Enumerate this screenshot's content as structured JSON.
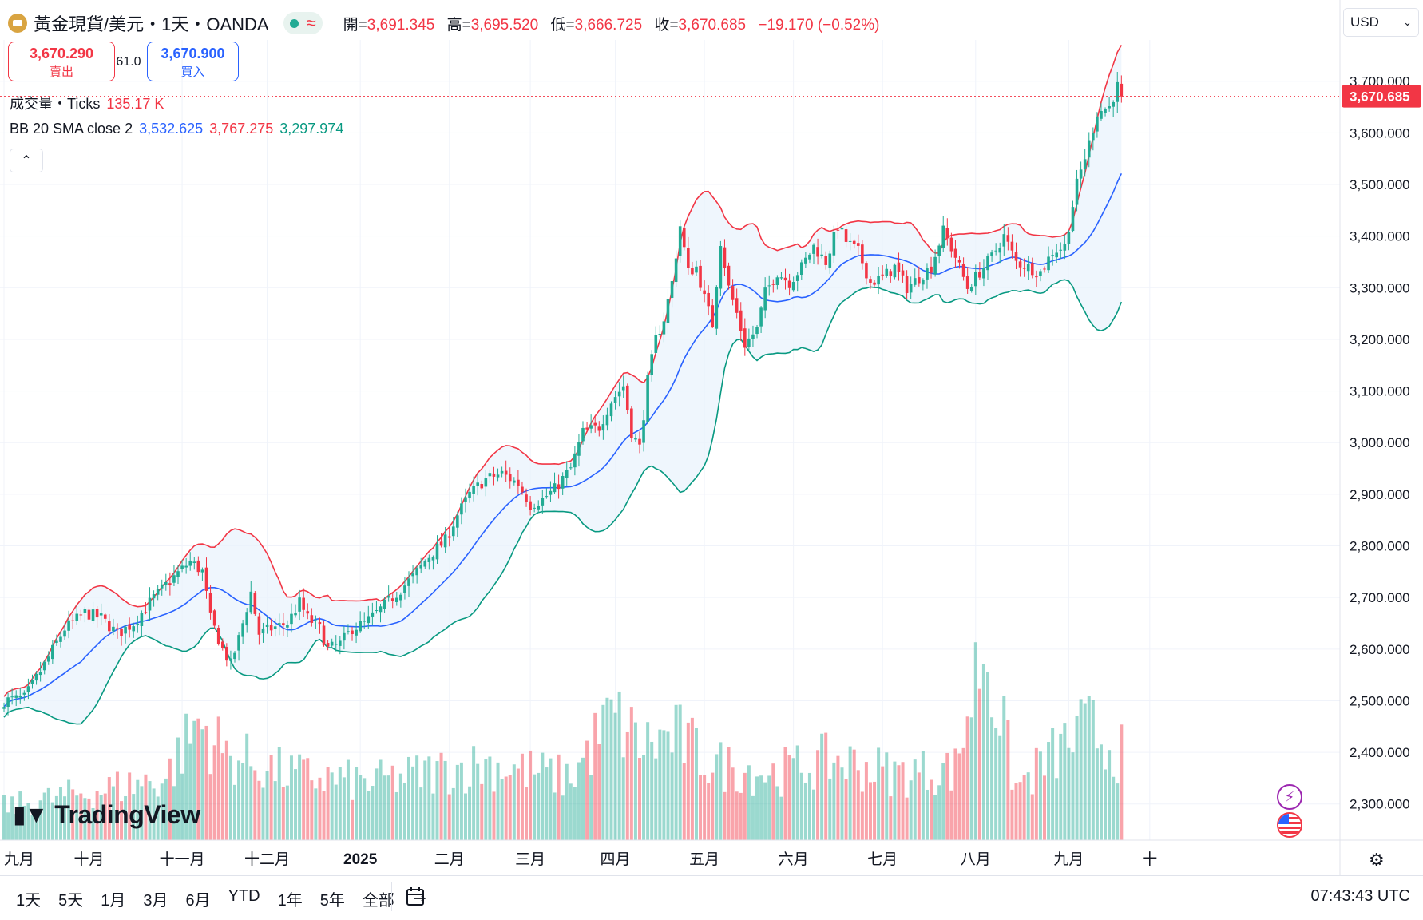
{
  "header": {
    "symbol": "黃金現貨/美元・1天・OANDA",
    "ohlc": [
      {
        "k": "開=",
        "v": "3,691.345"
      },
      {
        "k": "高=",
        "v": "3,695.520"
      },
      {
        "k": "低=",
        "v": "3,666.725"
      },
      {
        "k": "收=",
        "v": "3,670.685"
      }
    ],
    "change": "−19.170 (−0.52%)",
    "market_icon": "market-status-icon",
    "wave_icon": "≈"
  },
  "trade": {
    "sell_price": "3,670.290",
    "sell_label": "賣出",
    "spread": "61.0",
    "buy_price": "3,670.900",
    "buy_label": "買入"
  },
  "indicators": {
    "volume_label": "成交量・Ticks",
    "volume_value": "135.17 K",
    "bb_label": "BB 20 SMA close 2",
    "bb_basis": "3,532.625",
    "bb_upper": "3,767.275",
    "bb_lower": "3,297.974"
  },
  "currency": "USD",
  "brand": "TradingView",
  "last_price": "3,670.685",
  "ranges": [
    "1天",
    "5天",
    "1月",
    "3月",
    "6月",
    "YTD",
    "1年",
    "5年",
    "全部"
  ],
  "clock": "07:43:43 UTC",
  "colors": {
    "up": "#22ab94",
    "down": "#f23645",
    "basis": "#2962ff",
    "upper": "#f23645",
    "lower": "#089981",
    "fill": "#eaf3fc"
  },
  "chart_data": {
    "type": "candlestick",
    "title": "黃金現貨/美元・1天・OANDA",
    "ylim": [
      2230,
      3780
    ],
    "y_ticks": [
      2300,
      2400,
      2500,
      2600,
      2700,
      2800,
      2900,
      3000,
      3100,
      3200,
      3300,
      3400,
      3500,
      3600,
      3700
    ],
    "y_tick_labels": [
      "2,300.000",
      "2,400.000",
      "2,500.000",
      "2,600.000",
      "2,700.000",
      "2,800.000",
      "2,900.000",
      "3,000.000",
      "3,100.000",
      "3,200.000",
      "3,300.000",
      "3,400.000",
      "3,500.000",
      "3,600.000",
      "3,700.000"
    ],
    "x_labels": [
      "九月",
      "十月",
      "十一月",
      "十二月",
      "2025",
      "二月",
      "三月",
      "四月",
      "五月",
      "六月",
      "七月",
      "八月",
      "九月",
      "十"
    ],
    "x_label_bar": [
      0,
      21,
      44,
      65,
      88,
      110,
      130,
      151,
      173,
      195,
      217,
      240,
      263,
      283
    ],
    "close_anchors": [
      [
        0,
        2500
      ],
      [
        5,
        2505
      ],
      [
        10,
        2570
      ],
      [
        15,
        2640
      ],
      [
        20,
        2670
      ],
      [
        24,
        2660
      ],
      [
        28,
        2630
      ],
      [
        32,
        2650
      ],
      [
        37,
        2700
      ],
      [
        42,
        2740
      ],
      [
        46,
        2770
      ],
      [
        49,
        2750
      ],
      [
        51,
        2660
      ],
      [
        54,
        2600
      ],
      [
        56,
        2570
      ],
      [
        58,
        2620
      ],
      [
        61,
        2710
      ],
      [
        63,
        2630
      ],
      [
        66,
        2640
      ],
      [
        70,
        2650
      ],
      [
        73,
        2690
      ],
      [
        75,
        2660
      ],
      [
        78,
        2640
      ],
      [
        80,
        2600
      ],
      [
        83,
        2610
      ],
      [
        86,
        2640
      ],
      [
        89,
        2650
      ],
      [
        92,
        2670
      ],
      [
        96,
        2700
      ],
      [
        101,
        2740
      ],
      [
        105,
        2780
      ],
      [
        109,
        2810
      ],
      [
        112,
        2860
      ],
      [
        115,
        2900
      ],
      [
        119,
        2930
      ],
      [
        123,
        2940
      ],
      [
        127,
        2920
      ],
      [
        130,
        2880
      ],
      [
        133,
        2890
      ],
      [
        136,
        2910
      ],
      [
        140,
        2950
      ],
      [
        143,
        3020
      ],
      [
        147,
        3030
      ],
      [
        150,
        3080
      ],
      [
        153,
        3110
      ],
      [
        155,
        3020
      ],
      [
        157,
        2990
      ],
      [
        159,
        3120
      ],
      [
        161,
        3200
      ],
      [
        163,
        3240
      ],
      [
        165,
        3310
      ],
      [
        167,
        3420
      ],
      [
        169,
        3330
      ],
      [
        171,
        3340
      ],
      [
        173,
        3280
      ],
      [
        175,
        3230
      ],
      [
        177,
        3390
      ],
      [
        179,
        3300
      ],
      [
        181,
        3250
      ],
      [
        183,
        3190
      ],
      [
        186,
        3220
      ],
      [
        188,
        3290
      ],
      [
        191,
        3330
      ],
      [
        194,
        3310
      ],
      [
        197,
        3340
      ],
      [
        200,
        3380
      ],
      [
        203,
        3350
      ],
      [
        206,
        3420
      ],
      [
        208,
        3390
      ],
      [
        211,
        3370
      ],
      [
        214,
        3310
      ],
      [
        217,
        3320
      ],
      [
        220,
        3340
      ],
      [
        223,
        3300
      ],
      [
        226,
        3320
      ],
      [
        229,
        3340
      ],
      [
        232,
        3410
      ],
      [
        235,
        3360
      ],
      [
        238,
        3300
      ],
      [
        241,
        3330
      ],
      [
        244,
        3360
      ],
      [
        247,
        3400
      ],
      [
        250,
        3350
      ],
      [
        253,
        3340
      ],
      [
        256,
        3330
      ],
      [
        259,
        3370
      ],
      [
        262,
        3380
      ],
      [
        265,
        3500
      ],
      [
        268,
        3580
      ],
      [
        270,
        3640
      ],
      [
        273,
        3650
      ],
      [
        275,
        3690
      ],
      [
        276,
        3670.685
      ]
    ],
    "volume_anchors": [
      [
        0,
        35
      ],
      [
        20,
        50
      ],
      [
        40,
        65
      ],
      [
        48,
        125
      ],
      [
        55,
        90
      ],
      [
        70,
        70
      ],
      [
        90,
        60
      ],
      [
        110,
        75
      ],
      [
        120,
        80
      ],
      [
        140,
        65
      ],
      [
        150,
        130
      ],
      [
        158,
        100
      ],
      [
        166,
        110
      ],
      [
        175,
        80
      ],
      [
        190,
        70
      ],
      [
        205,
        85
      ],
      [
        220,
        70
      ],
      [
        235,
        75
      ],
      [
        242,
        210
      ],
      [
        250,
        55
      ],
      [
        262,
        100
      ],
      [
        268,
        118
      ],
      [
        276,
        90
      ]
    ],
    "bb_period": 20,
    "bb_mult": 2,
    "last_price": 3670.685
  }
}
